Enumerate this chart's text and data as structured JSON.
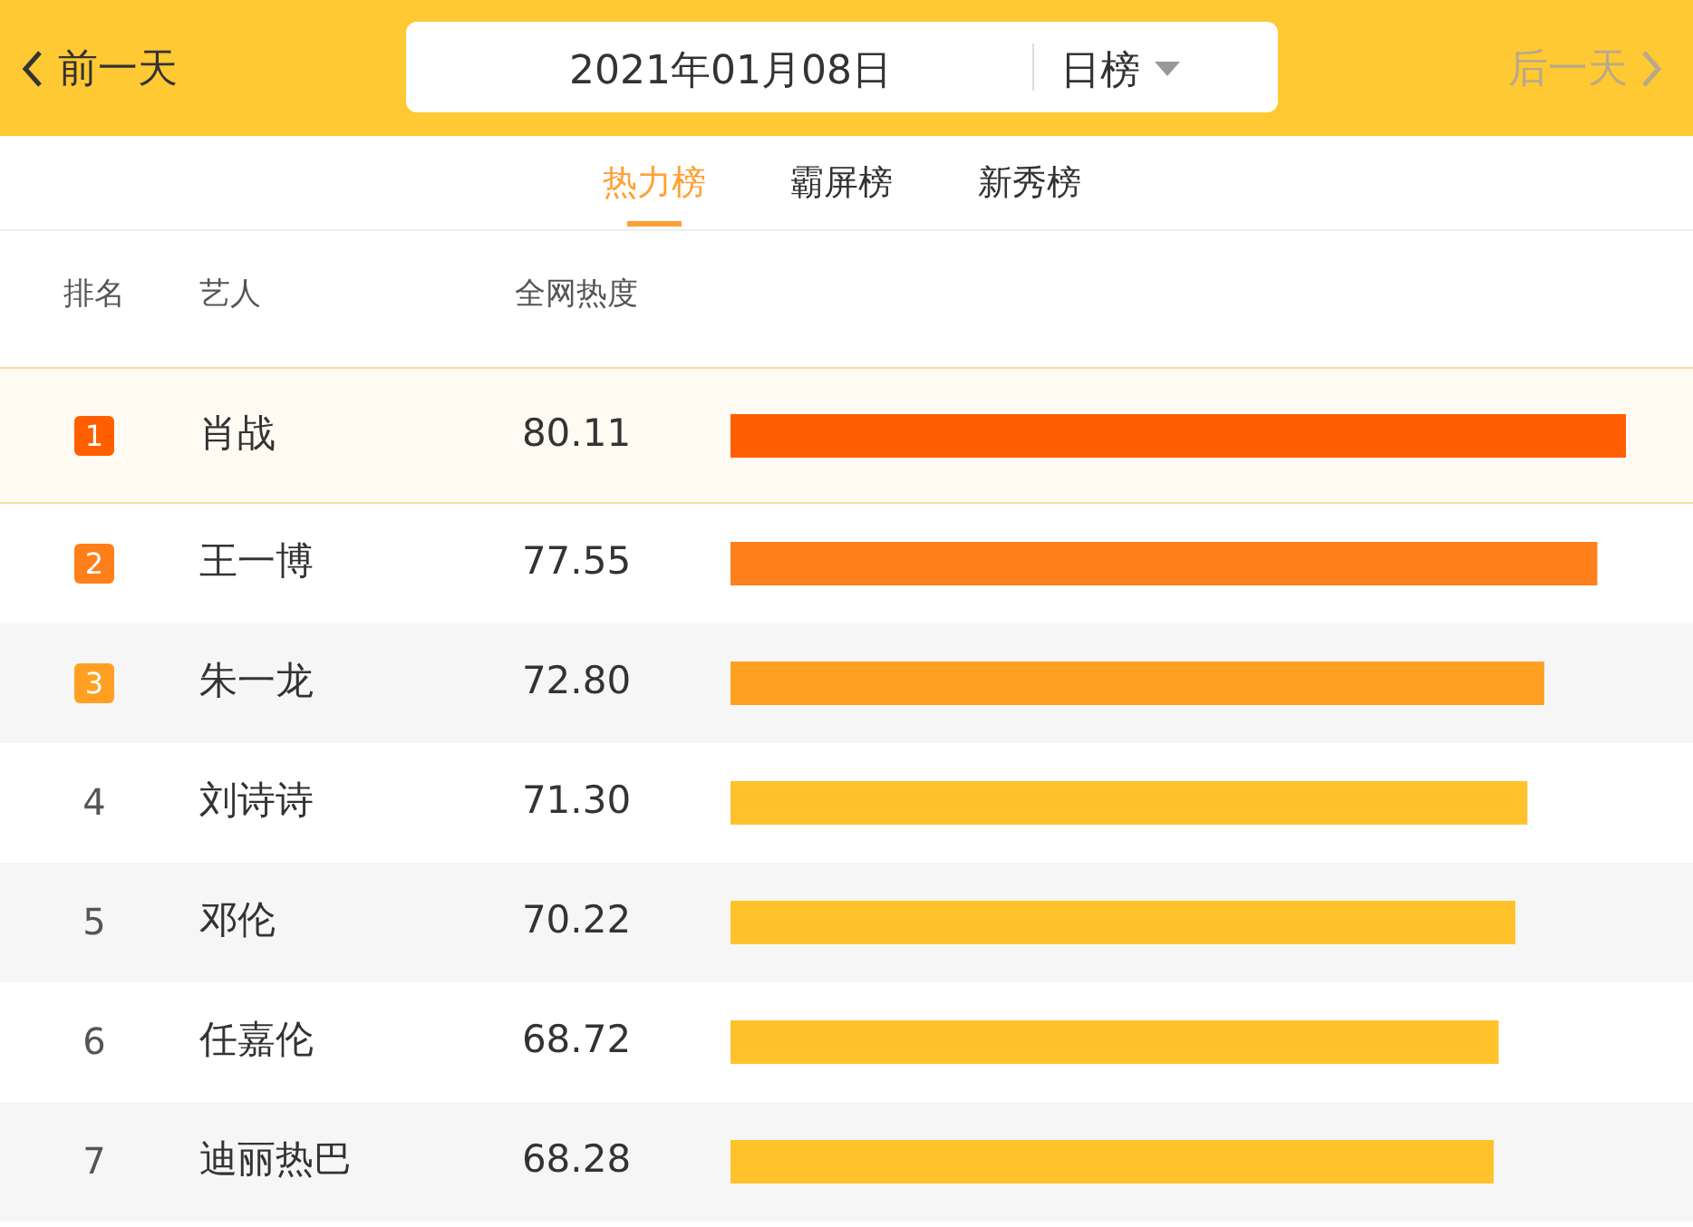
{
  "chart_data": {
    "type": "bar",
    "orientation": "horizontal",
    "bands": [
      {
        "axis": "y",
        "from": "肖战",
        "to": "肖战",
        "color": "#fffaf2"
      },
      {
        "axis": "y",
        "from": "朱一龙",
        "to": "朱一龙",
        "color": "#f6f6f6"
      },
      {
        "axis": "y",
        "from": "邓伦",
        "to": "邓伦",
        "color": "#f6f6f6"
      },
      {
        "axis": "y",
        "from": "迪丽热巴",
        "to": "迪丽热巴",
        "color": "#f6f6f6"
      }
    ],
    "categories": [
      "肖战",
      "王一博",
      "朱一龙",
      "刘诗诗",
      "邓伦",
      "任嘉伦",
      "迪丽热巴"
    ],
    "values": [
      80.11,
      77.55,
      72.8,
      71.3,
      70.22,
      68.72,
      68.28
    ],
    "value_labels": [
      "80.11",
      "77.55",
      "72.80",
      "71.30",
      "70.22",
      "68.72",
      "68.28"
    ],
    "colors": [
      "#ff5f00",
      "#ff7f1a",
      "#ffa022",
      "#ffc22b",
      "#ffc22b",
      "#ffc22b",
      "#ffc22b"
    ],
    "annotations": [
      "前一天",
      "2021年01月08日",
      "日榜",
      "后一天",
      "热力榜",
      "霸屏榜",
      "新秀榜",
      "排名",
      "艺人",
      "全网热度",
      "1",
      "2",
      "3",
      "4",
      "5",
      "6",
      "7"
    ]
  }
}
